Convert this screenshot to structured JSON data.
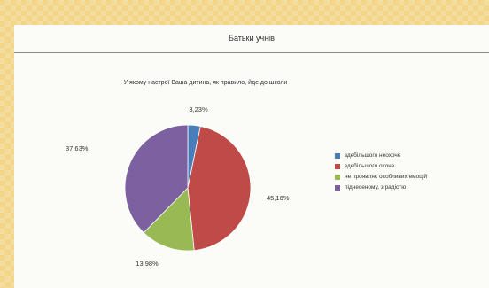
{
  "page": {
    "title": "Батьки учнів"
  },
  "chart_data": {
    "type": "pie",
    "title": "У якому настрої Ваша дитина, як правило, йде до школи",
    "categories": [
      "здебільшого неохоче",
      "здебільшого охоче",
      "не проявляє особливих емоцій",
      "піднесеному, з радістю"
    ],
    "values": [
      3.23,
      45.16,
      13.98,
      37.63
    ],
    "labels": [
      "3,23%",
      "45,16%",
      "13,98%",
      "37,63%"
    ],
    "colors": [
      "#4a7ebb",
      "#be4b48",
      "#98b954",
      "#7d60a0"
    ],
    "legend_position": "right"
  }
}
